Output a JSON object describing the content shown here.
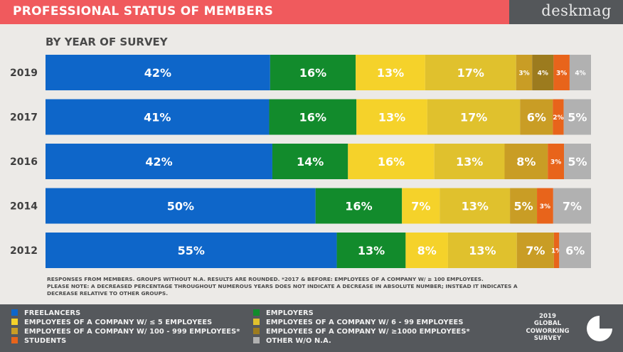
{
  "header": {
    "title": "PROFESSIONAL STATUS OF MEMBERS",
    "brand": "deskmag"
  },
  "subtitle": "BY YEAR OF SURVEY",
  "notes": [
    "RESPONSES FROM MEMBERS. GROUPS WITHOUT N.A. RESULTS ARE ROUNDED. *2017 & BEFORE: EMPLOYEES OF A COMPANY W/ ≥ 100 EMPLOYEES.",
    "PLEASE NOTE: A DECREASED PERCENTAGE THROUGHOUT NUMEROUS YEARS DOES NOT INDICATE A DECREASE IN ABSOLUTE NUMBER; INSTEAD IT INDICATES A",
    "DECREASE RELATIVE TO OTHER GROUPS."
  ],
  "legend": [
    {
      "label": "FREELANCERS",
      "color": "#0e66c9"
    },
    {
      "label": "EMPLOYERS",
      "color": "#128b2c"
    },
    {
      "label": "EMPLOYEES OF A COMPANY W/ ≤ 5 EMPLOYEES",
      "color": "#f5d22a"
    },
    {
      "label": "EMPLOYEES OF A COMPANY W/  6 - 99 EMPLOYEES",
      "color": "#e0c12d"
    },
    {
      "label": "EMPLOYEES OF A COMPANY W/  100 - 999 EMPLOYEES*",
      "color": "#c99d25"
    },
    {
      "label": "EMPLOYEES OF A COMPANY W/ ≥1000 EMPLOYEES*",
      "color": "#9c7b1e"
    },
    {
      "label": "STUDENTS",
      "color": "#e8641b"
    },
    {
      "label": "OTHER W/O N.A.",
      "color": "#b1b1b1"
    }
  ],
  "survey": {
    "line1": "2019",
    "line2": "GLOBAL",
    "line3": "COWORKING",
    "line4": "SURVEY"
  },
  "chart_data": {
    "type": "bar",
    "orientation": "horizontal",
    "stacked": true,
    "categories": [
      "2019",
      "2017",
      "2016",
      "2014",
      "2012"
    ],
    "series": [
      {
        "name": "FREELANCERS",
        "color": "#0e66c9",
        "values": [
          42,
          41,
          42,
          50,
          55
        ],
        "labels": [
          "42%",
          "41%",
          "42%",
          "50%",
          "55%"
        ]
      },
      {
        "name": "EMPLOYERS",
        "color": "#128b2c",
        "values": [
          16,
          16,
          14,
          16,
          13
        ],
        "labels": [
          "16%",
          "16%",
          "14%",
          "16%",
          "13%"
        ]
      },
      {
        "name": "EMPLOYEES OF A COMPANY W/ ≤ 5 EMPLOYEES",
        "color": "#f5d22a",
        "values": [
          13,
          13,
          16,
          7,
          8
        ],
        "labels": [
          "13%",
          "13%",
          "16%",
          "7%",
          "8%"
        ]
      },
      {
        "name": "EMPLOYEES OF A COMPANY W/  6 - 99 EMPLOYEES",
        "color": "#e0c12d",
        "values": [
          17,
          17,
          13,
          13,
          13
        ],
        "labels": [
          "17%",
          "17%",
          "13%",
          "13%",
          "13%"
        ]
      },
      {
        "name": "EMPLOYEES OF A COMPANY W/  100 - 999 EMPLOYEES*",
        "color": "#c99d25",
        "values": [
          3,
          6,
          8,
          5,
          7
        ],
        "labels": [
          "3%",
          "6%",
          "8%",
          "5%",
          "7%"
        ]
      },
      {
        "name": "EMPLOYEES OF A COMPANY W/ ≥1000 EMPLOYEES*",
        "color": "#9c7b1e",
        "values": [
          4,
          0,
          0,
          0,
          0
        ],
        "labels": [
          "4%",
          "",
          "",
          "",
          ""
        ]
      },
      {
        "name": "STUDENTS",
        "color": "#e8641b",
        "values": [
          3,
          2,
          3,
          3,
          1
        ],
        "labels": [
          "3%",
          "2%",
          "3%",
          "3%",
          "1%"
        ]
      },
      {
        "name": "OTHER W/O N.A.",
        "color": "#b1b1b1",
        "values": [
          4,
          5,
          5,
          7,
          6
        ],
        "labels": [
          "4%",
          "5%",
          "5%",
          "7%",
          "6%"
        ]
      }
    ],
    "xlim": [
      0,
      100
    ],
    "title": "PROFESSIONAL STATUS OF MEMBERS",
    "subtitle": "BY YEAR OF SURVEY"
  }
}
